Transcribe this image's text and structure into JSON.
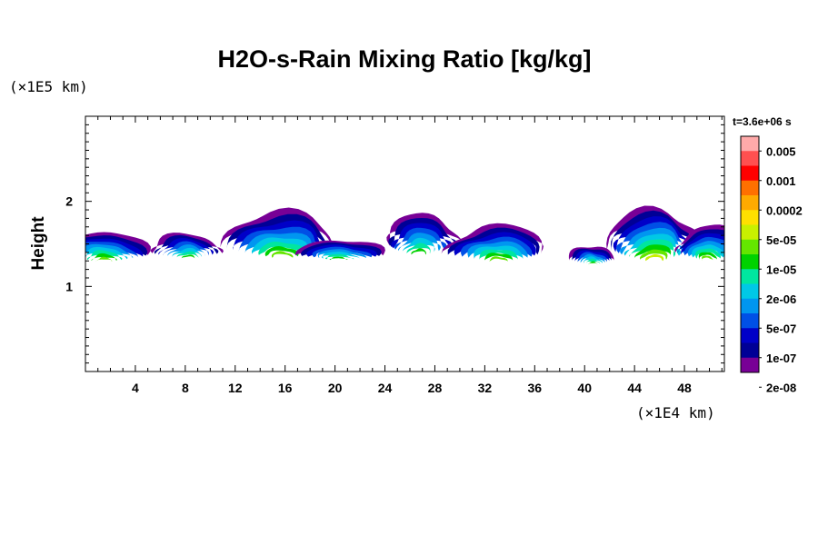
{
  "chart_data": {
    "type": "heatmap",
    "title": "H2O-s-Rain Mixing Ratio [kg/kg]",
    "ylabel": "Height",
    "y_unit": "(×1E5 km)",
    "x_unit": "(×1E4 km)",
    "time_label": "t=3.6e+06 s",
    "xlim": [
      0,
      51.2
    ],
    "ylim": [
      0,
      3
    ],
    "x_ticks": [
      "4",
      "8",
      "12",
      "16",
      "20",
      "24",
      "28",
      "32",
      "36",
      "40",
      "44",
      "48"
    ],
    "x_tick_values": [
      4,
      8,
      12,
      16,
      20,
      24,
      28,
      32,
      36,
      40,
      44,
      48
    ],
    "y_ticks": [
      "1",
      "2"
    ],
    "y_tick_values": [
      1,
      2
    ],
    "colorbar": {
      "labels": [
        "0.005",
        "0.001",
        "0.0002",
        "5e-05",
        "1e-05",
        "2e-06",
        "5e-07",
        "1e-07",
        "2e-08"
      ],
      "colors": [
        "#ffaaaa",
        "#ff5050",
        "#ff0000",
        "#ff7000",
        "#ffaa00",
        "#ffe000",
        "#c8f000",
        "#64e600",
        "#00d200",
        "#00e6a0",
        "#00c8e6",
        "#0096f0",
        "#0050e6",
        "#0000c8",
        "#000096",
        "#780096"
      ]
    },
    "rain_cells": [
      {
        "x_center": 1.5,
        "x_halfwidth": 3.5,
        "y_base": 1.2,
        "y_top": 1.65,
        "peak_level": 8
      },
      {
        "x_center": 8.0,
        "x_halfwidth": 2.8,
        "y_base": 1.25,
        "y_top": 1.62,
        "peak_level": 7
      },
      {
        "x_center": 15.5,
        "x_halfwidth": 4.5,
        "y_base": 1.2,
        "y_top": 1.88,
        "peak_level": 8
      },
      {
        "x_center": 20.5,
        "x_halfwidth": 3.5,
        "y_base": 1.25,
        "y_top": 1.55,
        "peak_level": 7
      },
      {
        "x_center": 27.0,
        "x_halfwidth": 3.0,
        "y_base": 1.25,
        "y_top": 1.85,
        "peak_level": 7
      },
      {
        "x_center": 33.0,
        "x_halfwidth": 4.0,
        "y_base": 1.18,
        "y_top": 1.72,
        "peak_level": 8
      },
      {
        "x_center": 40.5,
        "x_halfwidth": 1.8,
        "y_base": 1.2,
        "y_top": 1.48,
        "peak_level": 7
      },
      {
        "x_center": 45.5,
        "x_halfwidth": 4.0,
        "y_base": 1.15,
        "y_top": 1.9,
        "peak_level": 9
      },
      {
        "x_center": 50.0,
        "x_halfwidth": 2.5,
        "y_base": 1.2,
        "y_top": 1.72,
        "peak_level": 8
      }
    ]
  }
}
